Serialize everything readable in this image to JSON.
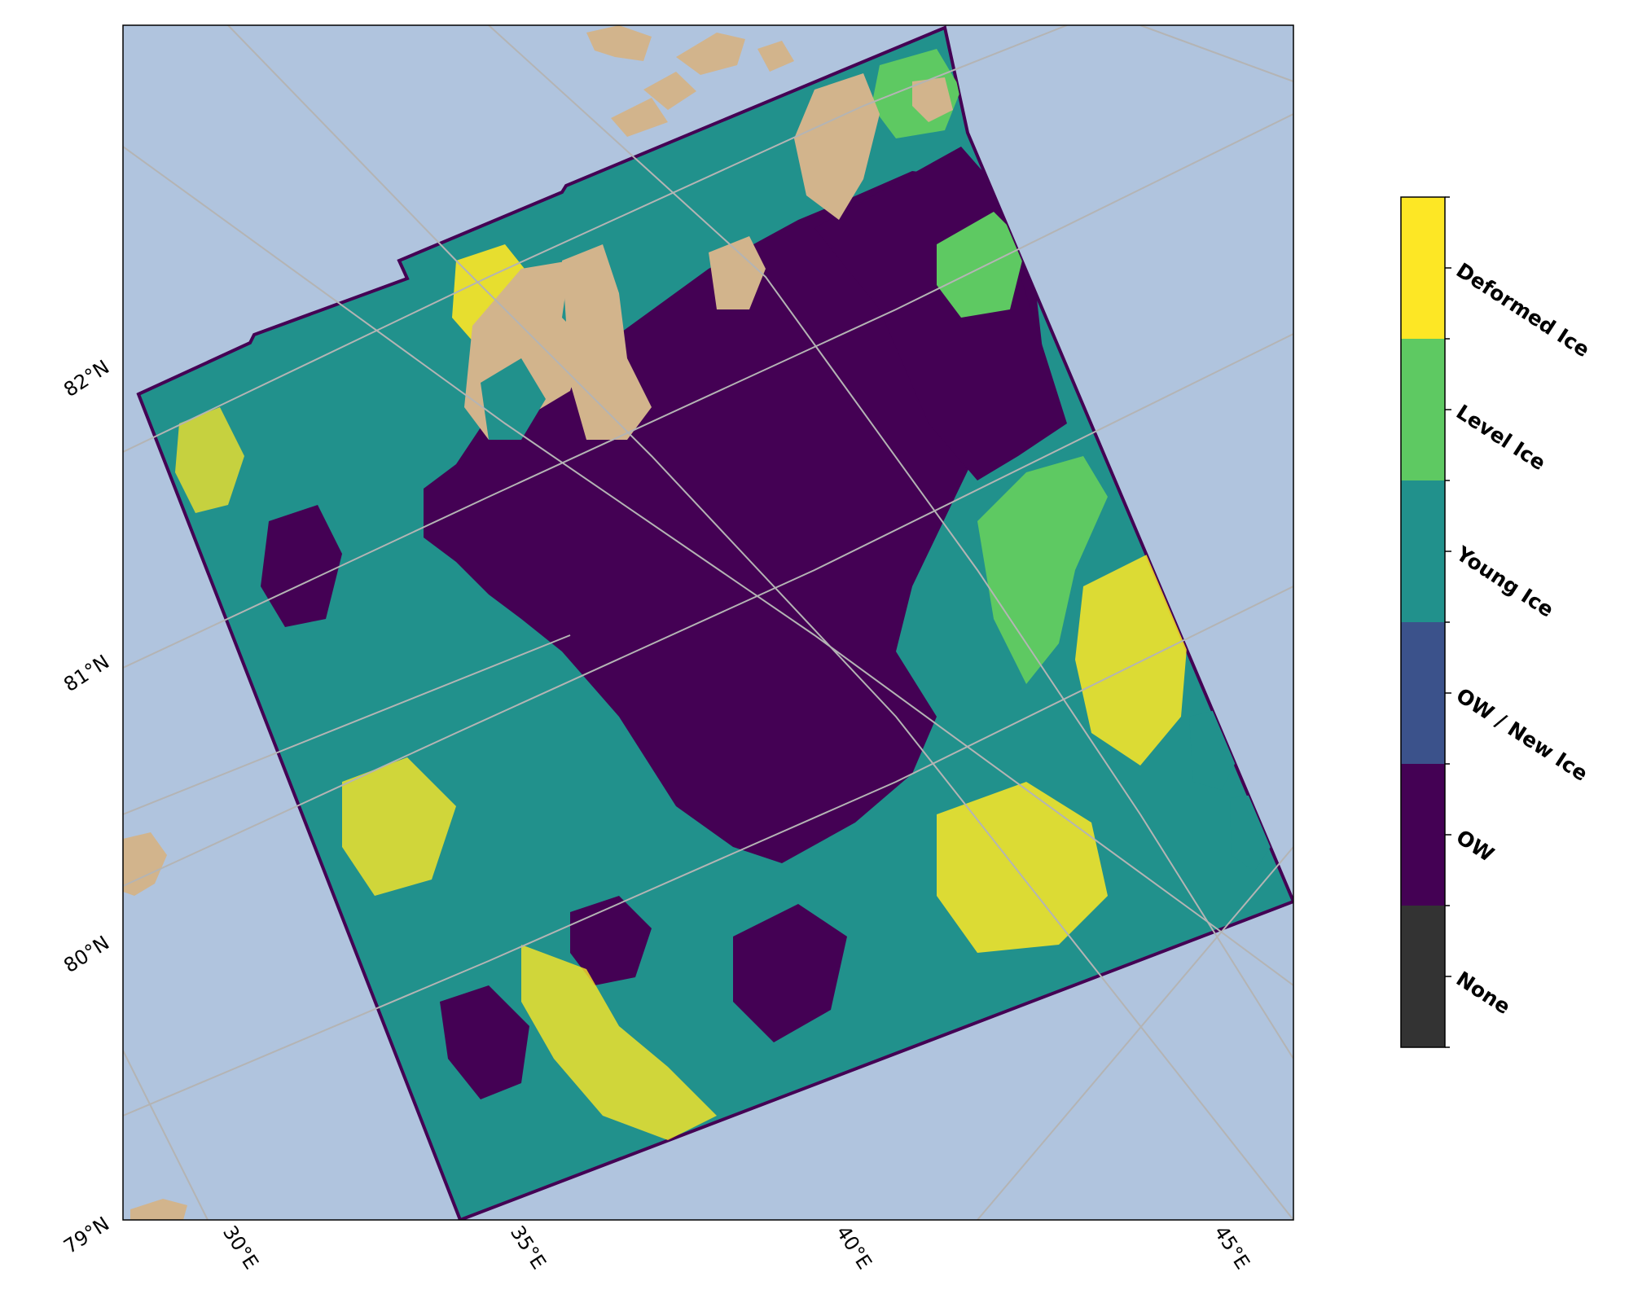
{
  "map": {
    "colors": {
      "ocean": "#b0c4de",
      "land": "#d2b48c",
      "graticule": "#b4b4b4",
      "frame": "#000000"
    },
    "lat_labels": [
      "79°N",
      "80°N",
      "81°N",
      "82°N"
    ],
    "lon_labels": [
      "30°E",
      "35°E",
      "40°E",
      "45°E"
    ]
  },
  "legend": {
    "classes": [
      {
        "name": "Deformed Ice",
        "color": "#fde725"
      },
      {
        "name": "Level Ice",
        "color": "#5ec962"
      },
      {
        "name": "Young Ice",
        "color": "#21918c"
      },
      {
        "name": "OW / New Ice",
        "color": "#3b528b"
      },
      {
        "name": "OW",
        "color": "#440154"
      },
      {
        "name": "None",
        "color": "#333333"
      }
    ]
  }
}
